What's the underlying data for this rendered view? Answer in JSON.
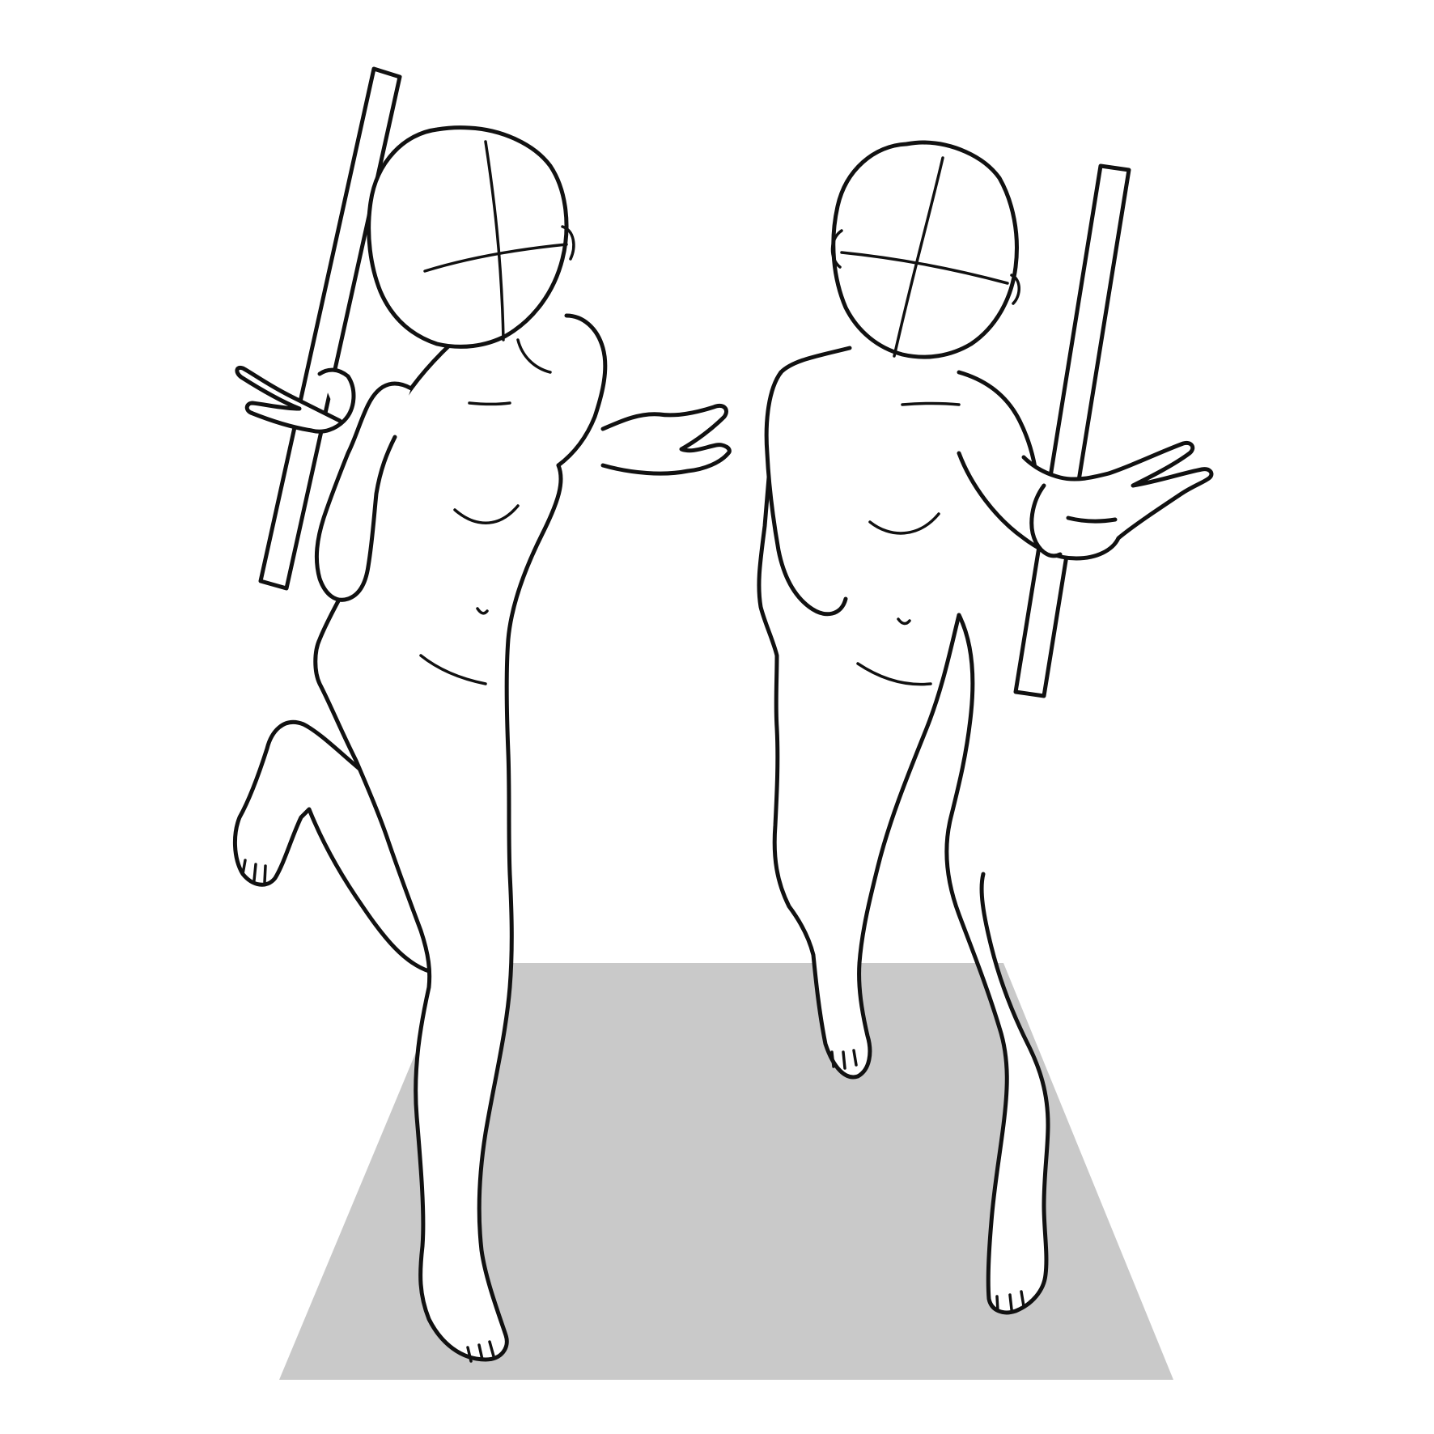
{
  "colors": {
    "background": "#ffffff",
    "floor": "#c9c9c9",
    "line": "#111111",
    "figure_fill": "#ffffff"
  },
  "scene": {
    "figures": [
      {
        "id": "left",
        "pose": "jumping-peace-sign",
        "holds": "stick"
      },
      {
        "id": "right",
        "pose": "standing-tiptoe-peace-sign",
        "holds": "stick"
      }
    ],
    "floor": "floor-plane"
  }
}
